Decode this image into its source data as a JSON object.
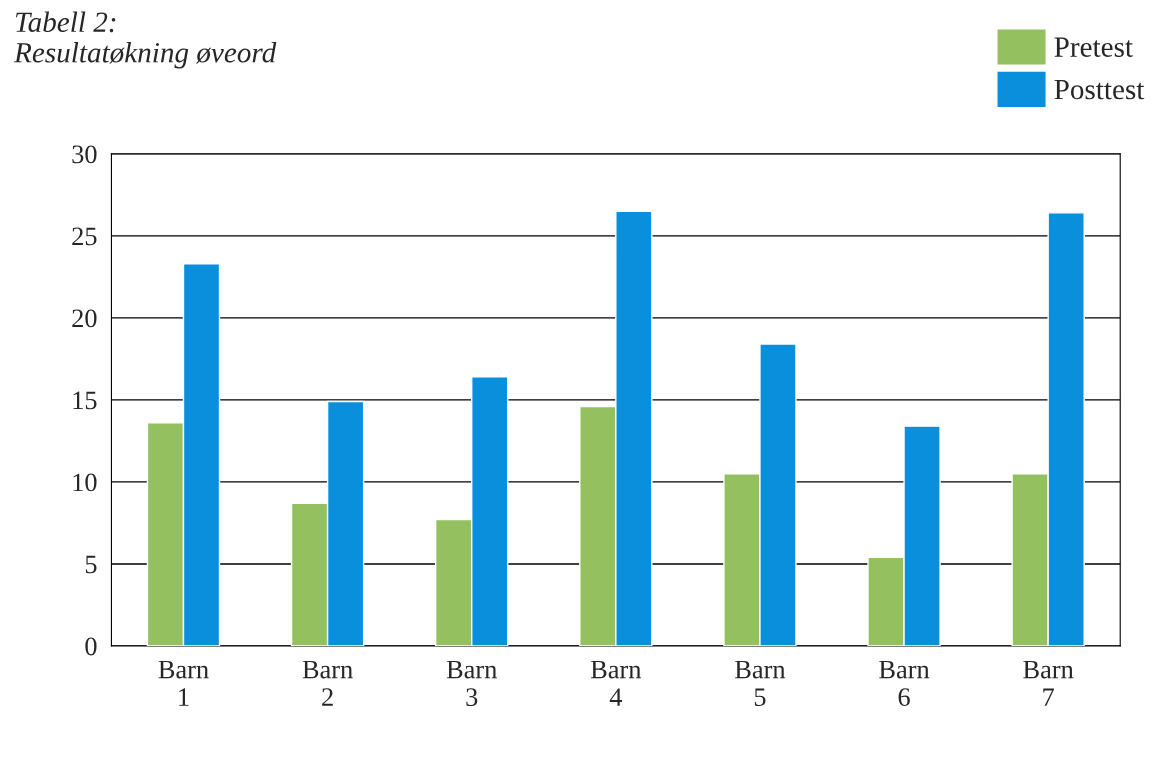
{
  "chart_data": {
    "type": "bar",
    "title": "Tabell 2:\nResultatøkning øveord",
    "categories": [
      "Barn\n1",
      "Barn\n2",
      "Barn\n3",
      "Barn\n4",
      "Barn\n5",
      "Barn\n6",
      "Barn\n7"
    ],
    "series": [
      {
        "name": "Pretest",
        "color": "#95c060",
        "values": [
          13.6,
          8.7,
          7.7,
          14.6,
          10.5,
          5.4,
          10.5
        ]
      },
      {
        "name": "Posttest",
        "color": "#0a8fdc",
        "values": [
          23.3,
          14.9,
          16.4,
          26.5,
          18.4,
          13.4,
          26.4
        ]
      }
    ],
    "ylim": [
      0,
      30
    ],
    "yticks": [
      0,
      5,
      10,
      15,
      20,
      25,
      30
    ],
    "grid": "y",
    "legend": "top right"
  }
}
